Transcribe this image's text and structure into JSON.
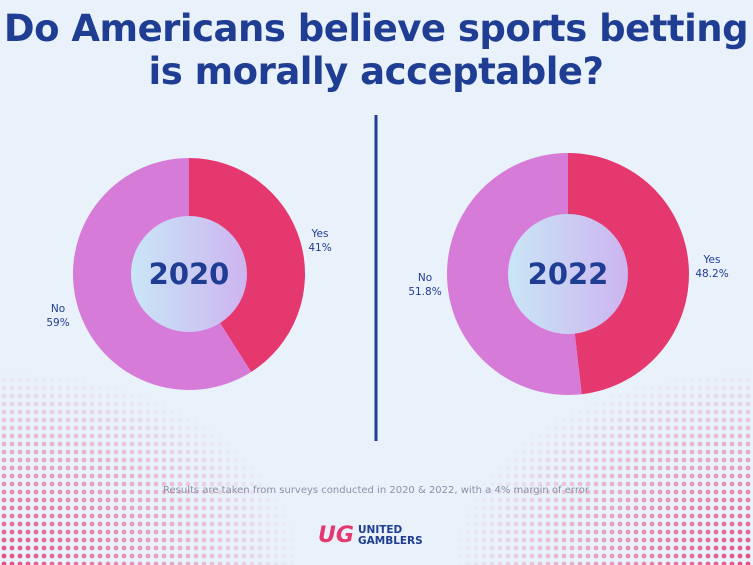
{
  "title": "Do Americans believe sports betting is morally acceptable?",
  "note": "Results are taken from surveys conducted in 2020 & 2022, with a 4% margin of error",
  "logo": {
    "mark": "UG",
    "line1": "UNITED",
    "line2": "GAMBLERS"
  },
  "chart_data": [
    {
      "type": "donut",
      "title": "2020",
      "categories": [
        "Yes",
        "No"
      ],
      "values": [
        41,
        59
      ],
      "value_labels": [
        "41%",
        "59%"
      ],
      "colors": [
        "#e5386f",
        "#d77bd9"
      ]
    },
    {
      "type": "donut",
      "title": "2022",
      "categories": [
        "Yes",
        "No"
      ],
      "values": [
        48.2,
        51.8
      ],
      "value_labels": [
        "48.2%",
        "51.8%"
      ],
      "colors": [
        "#e5386f",
        "#d77bd9"
      ]
    }
  ]
}
